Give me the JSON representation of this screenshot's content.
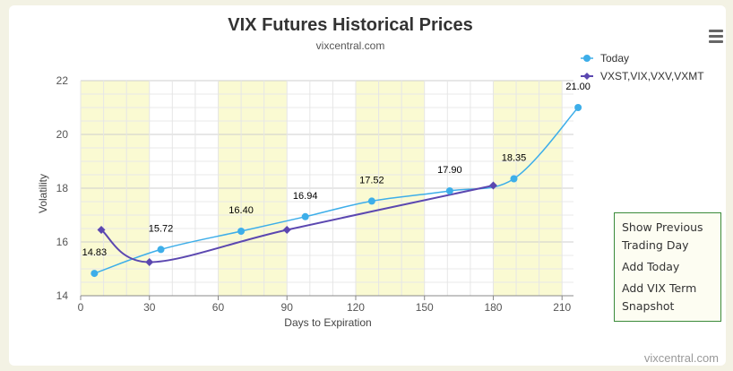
{
  "colors": {
    "today": "#3daee9",
    "term": "#5b47b0",
    "band": "#fafad2",
    "menu_border": "#3a8a3a"
  },
  "menu": {
    "icon": "hamburger-menu-icon",
    "items": [
      "Show Previous Trading Day",
      "Add Today",
      "Add VIX Term Snapshot"
    ]
  },
  "credit": "vixcentral.com",
  "chart_data": {
    "type": "line",
    "title": "VIX Futures Historical Prices",
    "subtitle": "vixcentral.com",
    "xlabel": "Days to Expiration",
    "ylabel": "Volatility",
    "xlim": [
      0,
      215
    ],
    "ylim": [
      14,
      22
    ],
    "xticks": [
      0,
      30,
      60,
      90,
      120,
      150,
      180,
      210
    ],
    "yticks": [
      14,
      16,
      18,
      20,
      22
    ],
    "grid": true,
    "legend_position": "top-right",
    "shaded_x_ranges": [
      [
        0,
        30
      ],
      [
        60,
        90
      ],
      [
        120,
        150
      ],
      [
        180,
        210
      ]
    ],
    "series": [
      {
        "name": "Today",
        "marker": "circle",
        "x": [
          6,
          35,
          70,
          98,
          127,
          161,
          189,
          217
        ],
        "y": [
          14.83,
          15.72,
          16.4,
          16.94,
          17.52,
          17.9,
          18.35,
          21.0
        ],
        "labels": [
          "14.83",
          "15.72",
          "16.40",
          "16.94",
          "17.52",
          "17.90",
          "18.35",
          "21.00"
        ]
      },
      {
        "name": "VXST,VIX,VXV,VXMT",
        "marker": "diamond",
        "x": [
          9,
          30,
          90,
          180
        ],
        "y": [
          16.45,
          15.25,
          16.45,
          18.1
        ]
      }
    ]
  }
}
